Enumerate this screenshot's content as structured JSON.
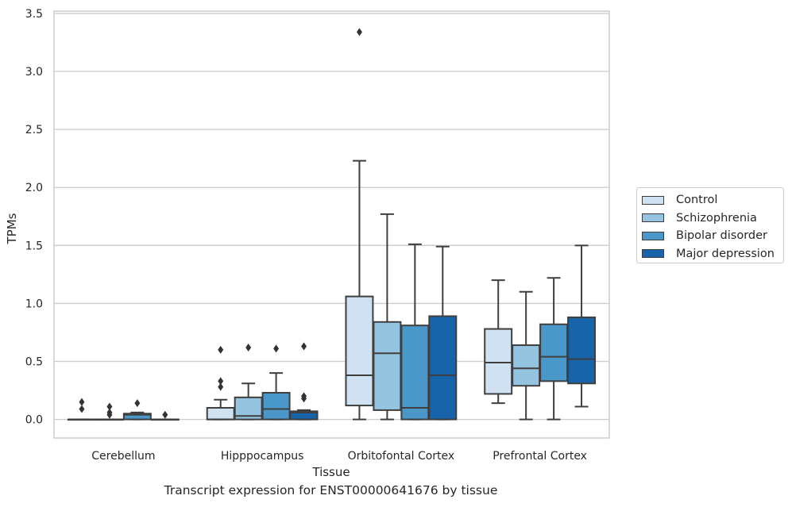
{
  "caption": "Transcript expression for ENST00000641676 by tissue",
  "chart_data": {
    "type": "box",
    "xlabel": "Tissue",
    "ylabel": "TPMs",
    "ylim": [
      -0.16,
      3.52
    ],
    "yticks": [
      "0.0",
      "0.5",
      "1.0",
      "1.5",
      "2.0",
      "2.5",
      "3.0",
      "3.5"
    ],
    "ytick_values": [
      0,
      0.5,
      1.0,
      1.5,
      2.0,
      2.5,
      3.0,
      3.5
    ],
    "grid": "horizontal",
    "legend_position": "right",
    "categories": [
      "Cerebellum",
      "Hipppocampus",
      "Orbitofontal Cortex",
      "Prefrontal Cortex"
    ],
    "series": [
      {
        "name": "Control",
        "color": "#d0e1f2",
        "boxes": [
          {
            "whislo": 0,
            "q1": 0,
            "med": 0,
            "q3": 0,
            "whishi": 0,
            "fliers": [
              0.15,
              0.09
            ]
          },
          {
            "whislo": 0,
            "q1": 0,
            "med": 0,
            "q3": 0.1,
            "whishi": 0.17,
            "fliers": [
              0.6,
              0.33,
              0.28
            ]
          },
          {
            "whislo": 0,
            "q1": 0.12,
            "med": 0.38,
            "q3": 1.06,
            "whishi": 2.23,
            "fliers": [
              3.34
            ]
          },
          {
            "whislo": 0.14,
            "q1": 0.22,
            "med": 0.49,
            "q3": 0.78,
            "whishi": 1.2,
            "fliers": []
          }
        ]
      },
      {
        "name": "Schizophrenia",
        "color": "#94c4df",
        "boxes": [
          {
            "whislo": 0,
            "q1": 0,
            "med": 0,
            "q3": 0,
            "whishi": 0,
            "fliers": [
              0.11,
              0.06,
              0.04
            ]
          },
          {
            "whislo": 0,
            "q1": 0,
            "med": 0.03,
            "q3": 0.19,
            "whishi": 0.31,
            "fliers": [
              0.62
            ]
          },
          {
            "whislo": 0,
            "q1": 0.08,
            "med": 0.57,
            "q3": 0.84,
            "whishi": 1.77,
            "fliers": []
          },
          {
            "whislo": 0,
            "q1": 0.29,
            "med": 0.44,
            "q3": 0.64,
            "whishi": 1.1,
            "fliers": []
          }
        ]
      },
      {
        "name": "Bipolar disorder",
        "color": "#4a98c9",
        "boxes": [
          {
            "whislo": 0,
            "q1": 0,
            "med": 0.04,
            "q3": 0.05,
            "whishi": 0.06,
            "fliers": [
              0.14
            ]
          },
          {
            "whislo": 0,
            "q1": 0,
            "med": 0.09,
            "q3": 0.23,
            "whishi": 0.4,
            "fliers": [
              0.61
            ]
          },
          {
            "whislo": 0,
            "q1": 0,
            "med": 0.1,
            "q3": 0.81,
            "whishi": 1.51,
            "fliers": []
          },
          {
            "whislo": 0,
            "q1": 0.33,
            "med": 0.54,
            "q3": 0.82,
            "whishi": 1.22,
            "fliers": []
          }
        ]
      },
      {
        "name": "Major depression",
        "color": "#1764ab",
        "boxes": [
          {
            "whislo": 0,
            "q1": 0,
            "med": 0,
            "q3": 0,
            "whishi": 0,
            "fliers": [
              0.04
            ]
          },
          {
            "whislo": 0,
            "q1": 0,
            "med": 0.06,
            "q3": 0.07,
            "whishi": 0.08,
            "fliers": [
              0.63,
              0.2,
              0.18
            ]
          },
          {
            "whislo": 0,
            "q1": 0,
            "med": 0.38,
            "q3": 0.89,
            "whishi": 1.49,
            "fliers": []
          },
          {
            "whislo": 0.11,
            "q1": 0.31,
            "med": 0.52,
            "q3": 0.88,
            "whishi": 1.5,
            "fliers": []
          }
        ]
      }
    ]
  }
}
